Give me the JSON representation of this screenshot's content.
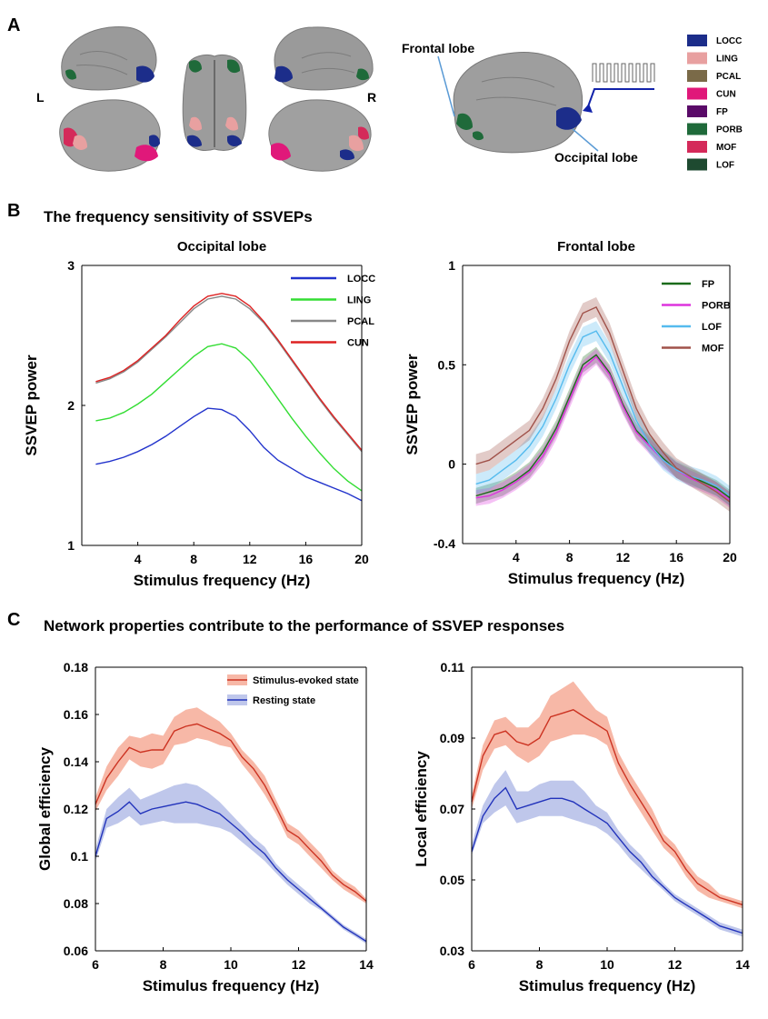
{
  "panel_labels": {
    "a": "A",
    "b": "B",
    "c": "C"
  },
  "panel_a": {
    "hemi_left": "L",
    "hemi_right": "R",
    "frontal_label": "Frontal lobe",
    "occipital_label": "Occipital lobe",
    "atlas_legend": [
      {
        "label": "LOCC",
        "color": "#1c2d8a"
      },
      {
        "label": "LING",
        "color": "#e8a0a0"
      },
      {
        "label": "PCAL",
        "color": "#7a6a48"
      },
      {
        "label": "CUN",
        "color": "#e0187a"
      },
      {
        "label": "FP",
        "color": "#5a0a68"
      },
      {
        "label": "PORB",
        "color": "#1f6a3a"
      },
      {
        "label": "MOF",
        "color": "#d42a5a"
      },
      {
        "label": "LOF",
        "color": "#1e4a30"
      }
    ]
  },
  "section_b_title": "The frequency sensitivity of SSVEPs",
  "section_c_title": "Network properties contribute to the performance of SSVEP responses",
  "chart_data": [
    {
      "type": "line",
      "title": "Occipital lobe",
      "xlabel": "Stimulus frequency (Hz)",
      "ylabel": "SSVEP power",
      "xlim": [
        0,
        20
      ],
      "ylim": [
        1,
        3
      ],
      "xticks": [
        4,
        8,
        12,
        16,
        20
      ],
      "yticks": [
        1,
        2,
        3
      ],
      "legend_position": "top-right",
      "x": [
        1,
        2,
        3,
        4,
        5,
        6,
        7,
        8,
        9,
        10,
        11,
        12,
        13,
        14,
        15,
        16,
        17,
        18,
        19,
        20
      ],
      "series": [
        {
          "name": "LOCC",
          "color": "#2233cc",
          "values": [
            1.58,
            1.6,
            1.63,
            1.67,
            1.72,
            1.78,
            1.85,
            1.92,
            1.98,
            1.97,
            1.92,
            1.82,
            1.7,
            1.61,
            1.55,
            1.49,
            1.45,
            1.41,
            1.37,
            1.32
          ]
        },
        {
          "name": "LING",
          "color": "#33dd33",
          "values": [
            1.89,
            1.91,
            1.95,
            2.01,
            2.08,
            2.17,
            2.26,
            2.35,
            2.42,
            2.44,
            2.41,
            2.32,
            2.19,
            2.05,
            1.91,
            1.78,
            1.66,
            1.55,
            1.46,
            1.39
          ]
        },
        {
          "name": "PCAL",
          "color": "#888888",
          "values": [
            2.16,
            2.19,
            2.24,
            2.31,
            2.4,
            2.49,
            2.59,
            2.69,
            2.76,
            2.78,
            2.76,
            2.69,
            2.59,
            2.46,
            2.32,
            2.18,
            2.04,
            1.91,
            1.79,
            1.67
          ]
        },
        {
          "name": "CUN",
          "color": "#dd2222",
          "values": [
            2.17,
            2.2,
            2.25,
            2.32,
            2.41,
            2.5,
            2.61,
            2.71,
            2.78,
            2.8,
            2.78,
            2.71,
            2.6,
            2.47,
            2.33,
            2.19,
            2.05,
            1.92,
            1.8,
            1.68
          ]
        }
      ]
    },
    {
      "type": "line",
      "title": "Frontal lobe",
      "xlabel": "Stimulus frequency (Hz)",
      "ylabel": "SSVEP power",
      "xlim": [
        0,
        20
      ],
      "ylim": [
        -0.4,
        1
      ],
      "xticks": [
        4,
        8,
        12,
        16,
        20
      ],
      "yticks": [
        -0.4,
        0,
        0.5,
        1
      ],
      "legend_position": "top-right",
      "x": [
        1,
        2,
        3,
        4,
        5,
        6,
        7,
        8,
        9,
        10,
        11,
        12,
        13,
        14,
        15,
        16,
        17,
        18,
        19,
        20
      ],
      "series": [
        {
          "name": "FP",
          "color": "#1a6b1a",
          "band": 0.04,
          "values": [
            -0.16,
            -0.14,
            -0.12,
            -0.08,
            -0.03,
            0.06,
            0.18,
            0.34,
            0.5,
            0.55,
            0.46,
            0.3,
            0.17,
            0.1,
            0.03,
            -0.03,
            -0.06,
            -0.09,
            -0.12,
            -0.17
          ]
        },
        {
          "name": "PORB",
          "color": "#dd33dd",
          "band": 0.04,
          "values": [
            -0.17,
            -0.16,
            -0.13,
            -0.09,
            -0.04,
            0.04,
            0.16,
            0.32,
            0.48,
            0.54,
            0.45,
            0.29,
            0.16,
            0.09,
            0.02,
            -0.03,
            -0.07,
            -0.1,
            -0.13,
            -0.18
          ]
        },
        {
          "name": "LOF",
          "color": "#55bbee",
          "band": 0.05,
          "values": [
            -0.1,
            -0.08,
            -0.03,
            0.02,
            0.09,
            0.19,
            0.33,
            0.5,
            0.64,
            0.67,
            0.56,
            0.39,
            0.22,
            0.1,
            0.02,
            -0.03,
            -0.06,
            -0.08,
            -0.11,
            -0.16
          ]
        },
        {
          "name": "MOF",
          "color": "#a0524a",
          "band": 0.05,
          "values": [
            0.0,
            0.02,
            0.07,
            0.12,
            0.17,
            0.28,
            0.43,
            0.62,
            0.76,
            0.79,
            0.66,
            0.47,
            0.28,
            0.15,
            0.06,
            -0.02,
            -0.06,
            -0.1,
            -0.14,
            -0.19
          ]
        }
      ]
    },
    {
      "type": "area",
      "xlabel": "Stimulus frequency (Hz)",
      "ylabel": "Global efficiency",
      "xlim": [
        6,
        14
      ],
      "ylim": [
        0.06,
        0.18
      ],
      "xticks": [
        6,
        8,
        10,
        12,
        14
      ],
      "yticks": [
        0.06,
        0.08,
        0.1,
        0.12,
        0.14,
        0.16,
        0.18
      ],
      "legend_position": "top-center",
      "x": [
        6,
        6.33,
        6.67,
        7,
        7.33,
        7.67,
        8,
        8.33,
        8.67,
        9,
        9.33,
        9.67,
        10,
        10.33,
        10.67,
        11,
        11.33,
        11.67,
        12,
        12.33,
        12.67,
        13,
        13.33,
        13.67,
        14
      ],
      "series": [
        {
          "name": "Stimulus-evoked state",
          "color": "#cc3322",
          "fill": "#f4a08a",
          "values": [
            0.122,
            0.133,
            0.14,
            0.146,
            0.144,
            0.145,
            0.145,
            0.153,
            0.155,
            0.156,
            0.154,
            0.152,
            0.149,
            0.142,
            0.137,
            0.13,
            0.121,
            0.111,
            0.108,
            0.103,
            0.098,
            0.092,
            0.088,
            0.085,
            0.081
          ],
          "lower": [
            0.119,
            0.128,
            0.134,
            0.141,
            0.138,
            0.137,
            0.139,
            0.147,
            0.148,
            0.15,
            0.149,
            0.147,
            0.146,
            0.139,
            0.133,
            0.126,
            0.118,
            0.108,
            0.105,
            0.1,
            0.095,
            0.09,
            0.086,
            0.083,
            0.08
          ],
          "upper": [
            0.125,
            0.138,
            0.146,
            0.151,
            0.15,
            0.152,
            0.151,
            0.159,
            0.162,
            0.163,
            0.16,
            0.157,
            0.152,
            0.145,
            0.14,
            0.134,
            0.124,
            0.114,
            0.111,
            0.106,
            0.101,
            0.094,
            0.09,
            0.087,
            0.082
          ]
        },
        {
          "name": "Resting state",
          "color": "#2233bb",
          "fill": "#aab4e4",
          "values": [
            0.1,
            0.116,
            0.119,
            0.123,
            0.118,
            0.12,
            0.121,
            0.122,
            0.123,
            0.122,
            0.12,
            0.118,
            0.114,
            0.11,
            0.105,
            0.101,
            0.095,
            0.09,
            0.086,
            0.082,
            0.078,
            0.074,
            0.07,
            0.067,
            0.064
          ],
          "lower": [
            0.098,
            0.112,
            0.114,
            0.117,
            0.113,
            0.114,
            0.115,
            0.114,
            0.114,
            0.114,
            0.113,
            0.112,
            0.11,
            0.106,
            0.102,
            0.098,
            0.093,
            0.088,
            0.084,
            0.08,
            0.077,
            0.073,
            0.069,
            0.066,
            0.063
          ],
          "upper": [
            0.103,
            0.12,
            0.125,
            0.129,
            0.124,
            0.126,
            0.128,
            0.13,
            0.131,
            0.13,
            0.127,
            0.123,
            0.118,
            0.113,
            0.108,
            0.104,
            0.097,
            0.092,
            0.088,
            0.084,
            0.079,
            0.075,
            0.071,
            0.068,
            0.065
          ]
        }
      ]
    },
    {
      "type": "area",
      "xlabel": "Stimulus frequency (Hz)",
      "ylabel": "Local efficiency",
      "xlim": [
        6,
        14
      ],
      "ylim": [
        0.03,
        0.11
      ],
      "xticks": [
        6,
        8,
        10,
        12,
        14
      ],
      "yticks": [
        0.03,
        0.05,
        0.07,
        0.09,
        0.11
      ],
      "x": [
        6,
        6.33,
        6.67,
        7,
        7.33,
        7.67,
        8,
        8.33,
        8.67,
        9,
        9.33,
        9.67,
        10,
        10.33,
        10.67,
        11,
        11.33,
        11.67,
        12,
        12.33,
        12.67,
        13,
        13.33,
        13.67,
        14
      ],
      "series": [
        {
          "name": "Stimulus-evoked state",
          "color": "#cc3322",
          "fill": "#f4a08a",
          "values": [
            0.072,
            0.085,
            0.091,
            0.092,
            0.089,
            0.088,
            0.09,
            0.096,
            0.097,
            0.098,
            0.096,
            0.094,
            0.092,
            0.083,
            0.077,
            0.072,
            0.067,
            0.061,
            0.058,
            0.053,
            0.049,
            0.047,
            0.045,
            0.044,
            0.043
          ],
          "lower": [
            0.07,
            0.081,
            0.087,
            0.088,
            0.085,
            0.083,
            0.085,
            0.089,
            0.09,
            0.091,
            0.091,
            0.09,
            0.088,
            0.08,
            0.074,
            0.069,
            0.064,
            0.059,
            0.056,
            0.051,
            0.047,
            0.045,
            0.044,
            0.043,
            0.042
          ],
          "upper": [
            0.074,
            0.088,
            0.095,
            0.096,
            0.093,
            0.093,
            0.096,
            0.102,
            0.104,
            0.106,
            0.102,
            0.098,
            0.096,
            0.086,
            0.08,
            0.075,
            0.07,
            0.063,
            0.06,
            0.055,
            0.051,
            0.049,
            0.046,
            0.045,
            0.044
          ]
        },
        {
          "name": "Resting state",
          "color": "#2233bb",
          "fill": "#aab4e4",
          "values": [
            0.058,
            0.068,
            0.073,
            0.076,
            0.07,
            0.071,
            0.072,
            0.073,
            0.073,
            0.072,
            0.07,
            0.068,
            0.066,
            0.062,
            0.058,
            0.055,
            0.051,
            0.048,
            0.045,
            0.043,
            0.041,
            0.039,
            0.037,
            0.036,
            0.035
          ],
          "lower": [
            0.057,
            0.066,
            0.069,
            0.071,
            0.066,
            0.067,
            0.068,
            0.068,
            0.068,
            0.067,
            0.066,
            0.065,
            0.063,
            0.06,
            0.056,
            0.053,
            0.05,
            0.047,
            0.044,
            0.042,
            0.04,
            0.038,
            0.036,
            0.035,
            0.034
          ],
          "upper": [
            0.06,
            0.071,
            0.077,
            0.081,
            0.075,
            0.075,
            0.077,
            0.078,
            0.078,
            0.078,
            0.075,
            0.071,
            0.069,
            0.064,
            0.06,
            0.057,
            0.053,
            0.049,
            0.046,
            0.044,
            0.042,
            0.04,
            0.038,
            0.037,
            0.036
          ]
        }
      ]
    }
  ]
}
